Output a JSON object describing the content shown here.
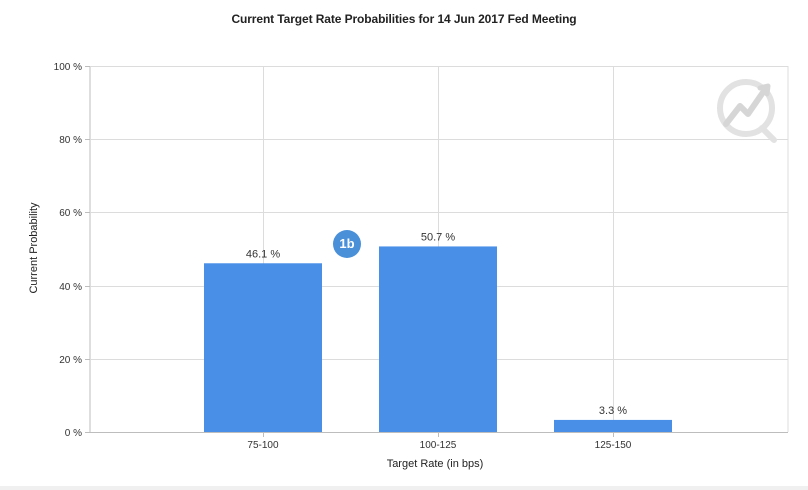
{
  "chart_data": {
    "type": "bar",
    "title": "Current Target Rate Probabilities for 14 Jun 2017 Fed Meeting",
    "xlabel": "Target Rate (in bps)",
    "ylabel": "Current Probability",
    "categories": [
      "75-100",
      "100-125",
      "125-150"
    ],
    "values": [
      46.1,
      50.7,
      3.3
    ],
    "data_labels": [
      "46.1 %",
      "50.7 %",
      "3.3 %"
    ],
    "yticks": [
      0,
      20,
      40,
      60,
      80,
      100
    ],
    "ytick_labels": [
      "0 %",
      "20 %",
      "40 %",
      "60 %",
      "80 %",
      "100 %"
    ],
    "ylim": [
      0,
      100
    ],
    "grid": true,
    "bar_color": "#4a8fe7"
  },
  "badge": {
    "label": "1b",
    "color": "#4a90d9"
  },
  "watermark": {
    "icon": "cme-fedwatch-logo-icon"
  }
}
